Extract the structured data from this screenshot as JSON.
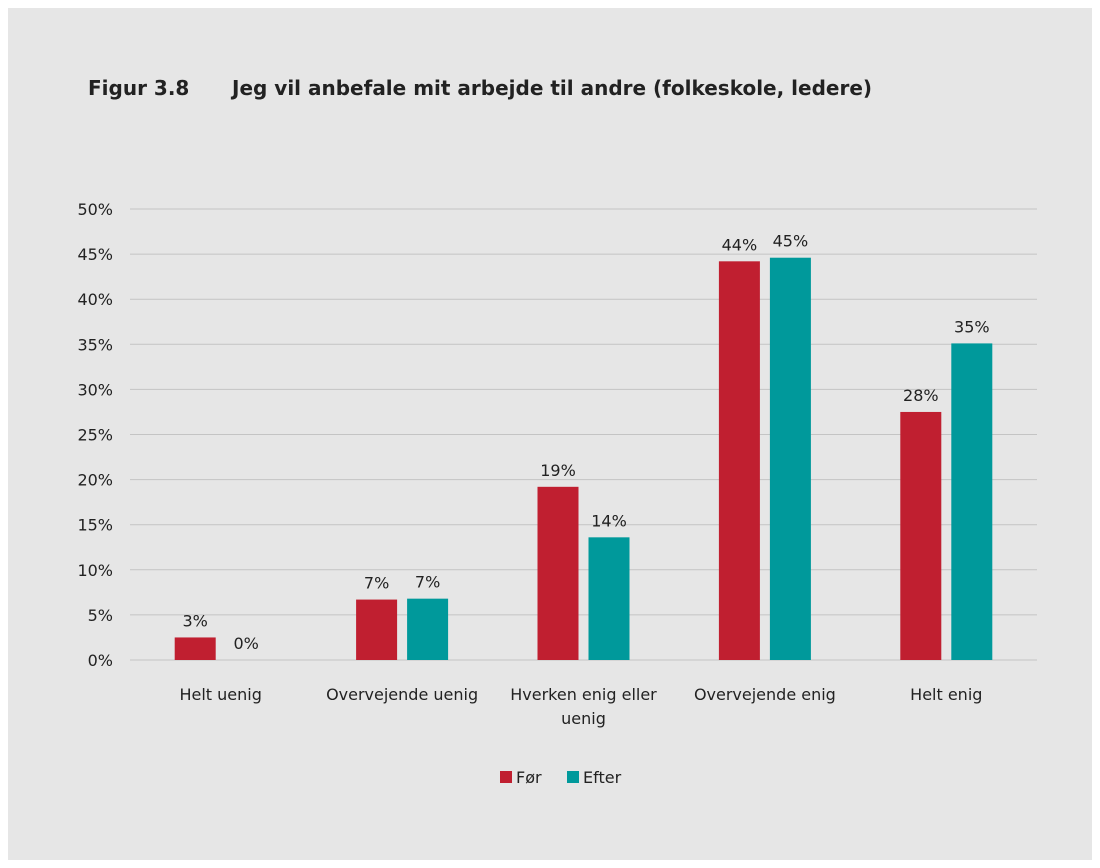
{
  "figure": {
    "number": "Figur 3.8",
    "title": "Jeg vil anbefale mit arbejde til andre (folkeskole, ledere)"
  },
  "chart_data": {
    "type": "bar",
    "categories": [
      [
        "Helt uenig"
      ],
      [
        "Overvejende uenig"
      ],
      [
        "Hverken enig eller",
        "uenig"
      ],
      [
        "Overvejende enig"
      ],
      [
        "Helt enig"
      ]
    ],
    "series": [
      {
        "name": "Før",
        "color": "#c01f30",
        "values": [
          2.5,
          6.7,
          19.2,
          44.2,
          27.5
        ],
        "labels": [
          "3%",
          "7%",
          "19%",
          "44%",
          "28%"
        ]
      },
      {
        "name": "Efter",
        "color": "#00999b",
        "values": [
          0,
          6.8,
          13.6,
          44.6,
          35.1
        ],
        "labels": [
          "0%",
          "7%",
          "14%",
          "45%",
          "35%"
        ]
      }
    ],
    "y_ticks": [
      0,
      5,
      10,
      15,
      20,
      25,
      30,
      35,
      40,
      45,
      50
    ],
    "y_tick_labels": [
      "0%",
      "5%",
      "10%",
      "15%",
      "20%",
      "25%",
      "30%",
      "35%",
      "40%",
      "45%",
      "50%"
    ],
    "ylim": [
      0,
      50
    ],
    "grid": true,
    "legend_position": "bottom-center",
    "gridline_color": "#c4c4c4",
    "xlabel": "",
    "ylabel": ""
  }
}
